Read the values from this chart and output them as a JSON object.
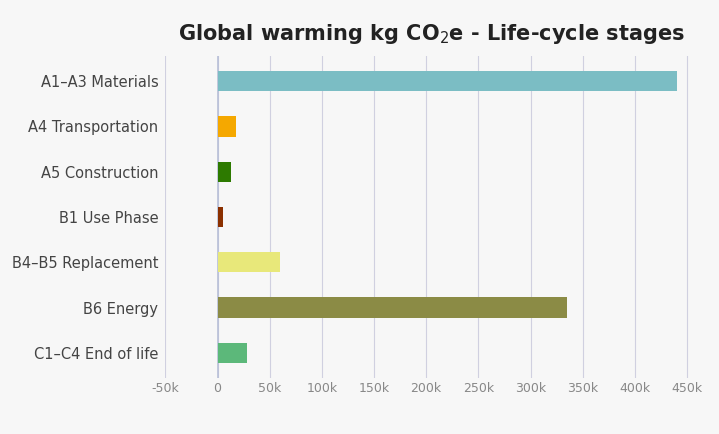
{
  "categories": [
    "A1–A3 Materials",
    "A4 Transportation",
    "A5 Construction",
    "B1 Use Phase",
    "B4–B5 Replacement",
    "B6 Energy",
    "C1–C4 End of life"
  ],
  "values": [
    440000,
    18000,
    13000,
    5000,
    60000,
    335000,
    28000
  ],
  "colors": [
    "#7bbdc4",
    "#f5a800",
    "#2d7a00",
    "#8b3000",
    "#e8e87a",
    "#8b8b45",
    "#5cb87a"
  ],
  "title_part1": "Global warming kg CO",
  "title_sub": "2",
  "title_part2": "e - Life-cycle stages",
  "xlim": [
    -50000,
    460000
  ],
  "xticks": [
    -50000,
    0,
    50000,
    100000,
    150000,
    200000,
    250000,
    300000,
    350000,
    400000,
    450000
  ],
  "xtick_labels": [
    "-50k",
    "0",
    "50k",
    "100k",
    "150k",
    "200k",
    "250k",
    "300k",
    "350k",
    "400k",
    "450k"
  ],
  "background_color": "#f7f7f7",
  "grid_color": "#d0d0e0",
  "vline_color": "#b8c0d8",
  "bar_height": 0.45,
  "title_fontsize": 15,
  "tick_fontsize": 9,
  "label_fontsize": 10.5
}
